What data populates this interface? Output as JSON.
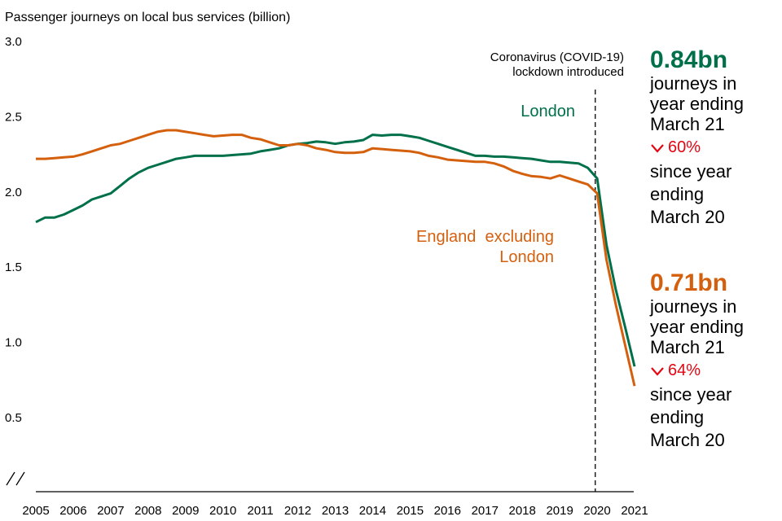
{
  "chart_data": {
    "type": "line",
    "ylabel": "Passenger journeys on local bus services (billion)",
    "ylim": [
      0.5,
      3.0
    ],
    "yticks": [
      "3.0",
      "2.5",
      "2.0",
      "1.5",
      "1.0",
      "0.5"
    ],
    "ytick_values": [
      3.0,
      2.5,
      2.0,
      1.5,
      1.0,
      0.5
    ],
    "xticks": [
      "2005",
      "2006",
      "2007",
      "2008",
      "2009",
      "2010",
      "2011",
      "2012",
      "2013",
      "2014",
      "2015",
      "2016",
      "2017",
      "2018",
      "2019",
      "2020",
      "2021"
    ],
    "xlim": [
      2005,
      2021
    ],
    "axis_break": true,
    "annotation": {
      "x": 2019.95,
      "lines": [
        "Coronavirus (COVID-19)",
        "lockdown introduced"
      ]
    },
    "series": [
      {
        "name": "London",
        "label": "London",
        "color": "#00704a",
        "x": [
          2005,
          2005.25,
          2005.5,
          2005.75,
          2006,
          2006.25,
          2006.5,
          2006.75,
          2007,
          2007.25,
          2007.5,
          2007.75,
          2008,
          2008.25,
          2008.5,
          2008.75,
          2009,
          2009.25,
          2009.5,
          2009.75,
          2010,
          2010.25,
          2010.5,
          2010.75,
          2011,
          2011.25,
          2011.5,
          2011.75,
          2012,
          2012.25,
          2012.5,
          2012.75,
          2013,
          2013.25,
          2013.5,
          2013.75,
          2014,
          2014.25,
          2014.5,
          2014.75,
          2015,
          2015.25,
          2015.5,
          2015.75,
          2016,
          2016.25,
          2016.5,
          2016.75,
          2017,
          2017.25,
          2017.5,
          2017.75,
          2018,
          2018.25,
          2018.5,
          2018.75,
          2019,
          2019.25,
          2019.5,
          2019.75,
          2020,
          2020.25,
          2020.5,
          2020.75,
          2021
        ],
        "values": [
          1.8,
          1.83,
          1.83,
          1.85,
          1.88,
          1.91,
          1.95,
          1.97,
          1.99,
          2.04,
          2.09,
          2.13,
          2.16,
          2.18,
          2.2,
          2.22,
          2.23,
          2.24,
          2.24,
          2.24,
          2.24,
          2.245,
          2.25,
          2.255,
          2.27,
          2.28,
          2.29,
          2.31,
          2.32,
          2.325,
          2.335,
          2.33,
          2.32,
          2.33,
          2.335,
          2.345,
          2.38,
          2.375,
          2.38,
          2.38,
          2.37,
          2.36,
          2.34,
          2.32,
          2.3,
          2.28,
          2.26,
          2.24,
          2.24,
          2.235,
          2.235,
          2.23,
          2.225,
          2.22,
          2.21,
          2.2,
          2.2,
          2.195,
          2.19,
          2.16,
          2.09,
          1.65,
          1.35,
          1.1,
          0.84
        ]
      },
      {
        "name": "England excluding London",
        "label": "England excluding London",
        "label_lines": [
          "England  excluding",
          "London"
        ],
        "color": "#d4600e",
        "x": [
          2005,
          2005.25,
          2005.5,
          2005.75,
          2006,
          2006.25,
          2006.5,
          2006.75,
          2007,
          2007.25,
          2007.5,
          2007.75,
          2008,
          2008.25,
          2008.5,
          2008.75,
          2009,
          2009.25,
          2009.5,
          2009.75,
          2010,
          2010.25,
          2010.5,
          2010.75,
          2011,
          2011.25,
          2011.5,
          2011.75,
          2012,
          2012.25,
          2012.5,
          2012.75,
          2013,
          2013.25,
          2013.5,
          2013.75,
          2014,
          2014.25,
          2014.5,
          2014.75,
          2015,
          2015.25,
          2015.5,
          2015.75,
          2016,
          2016.25,
          2016.5,
          2016.75,
          2017,
          2017.25,
          2017.5,
          2017.75,
          2018,
          2018.25,
          2018.5,
          2018.75,
          2019,
          2019.25,
          2019.5,
          2019.75,
          2020,
          2020.25,
          2020.5,
          2020.75,
          2021
        ],
        "values": [
          2.22,
          2.22,
          2.225,
          2.23,
          2.235,
          2.25,
          2.27,
          2.29,
          2.31,
          2.32,
          2.34,
          2.36,
          2.38,
          2.4,
          2.41,
          2.41,
          2.4,
          2.39,
          2.38,
          2.37,
          2.375,
          2.38,
          2.38,
          2.36,
          2.35,
          2.33,
          2.31,
          2.31,
          2.32,
          2.31,
          2.29,
          2.28,
          2.265,
          2.26,
          2.26,
          2.265,
          2.29,
          2.285,
          2.28,
          2.275,
          2.27,
          2.26,
          2.24,
          2.23,
          2.215,
          2.21,
          2.205,
          2.2,
          2.2,
          2.19,
          2.17,
          2.14,
          2.12,
          2.105,
          2.1,
          2.09,
          2.11,
          2.09,
          2.07,
          2.05,
          1.99,
          1.55,
          1.25,
          0.98,
          0.71
        ]
      }
    ]
  },
  "callouts": {
    "london": {
      "value": "0.84bn",
      "desc": [
        "journeys in",
        "year ending",
        "March 21"
      ],
      "change": "60%",
      "since": [
        "since year",
        "ending",
        "March 20"
      ],
      "color": "#00704a"
    },
    "england": {
      "value": "0.71bn",
      "desc": [
        "journeys in",
        "year ending",
        "March 21"
      ],
      "change": "64%",
      "since": [
        "since year",
        "ending",
        "March 20"
      ],
      "color": "#d4600e"
    },
    "change_color": "#e30613",
    "change_icon": "chevron-down-icon"
  }
}
